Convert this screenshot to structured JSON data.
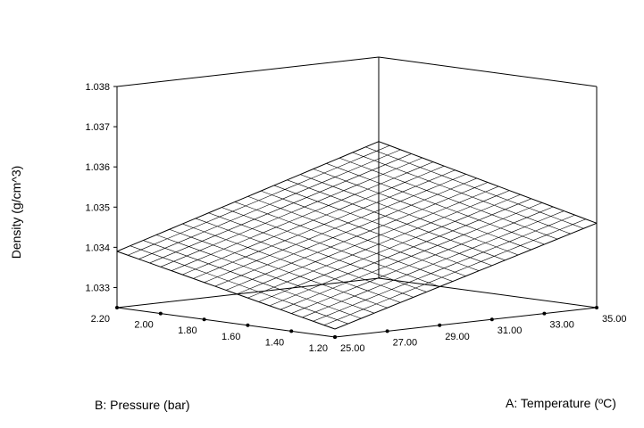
{
  "chart_data": {
    "type": "surface3d",
    "title": "",
    "zlabel": "Density (g/cm^3)",
    "xlabel": "A: Temperature (ºC)",
    "ylabel": "B: Pressure (bar)",
    "x_ticks": [
      "25.00",
      "27.00",
      "29.00",
      "31.00",
      "33.00",
      "35.00"
    ],
    "y_ticks": [
      "1.20",
      "1.40",
      "1.60",
      "1.80",
      "2.00",
      "2.20"
    ],
    "z_ticks": [
      "1.033",
      "1.034",
      "1.035",
      "1.036",
      "1.037",
      "1.038"
    ],
    "xlim": [
      25,
      35
    ],
    "ylim": [
      1.2,
      2.2
    ],
    "zlim": [
      1.0325,
      1.038
    ],
    "grid_divisions": 20,
    "corner_values": {
      "t25_p1.2": 1.0327,
      "t35_p1.2": 1.0346,
      "t25_p2.2": 1.0339,
      "t35_p2.2": 1.0359
    }
  }
}
